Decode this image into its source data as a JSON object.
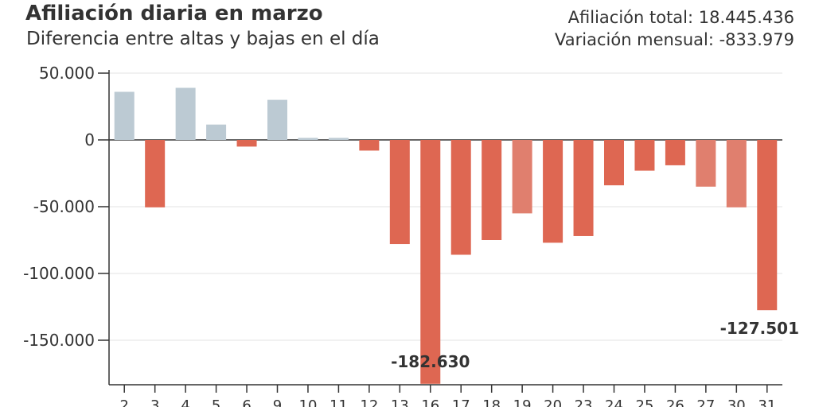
{
  "header": {
    "title": "Afiliación diaria en marzo",
    "subtitle": "Diferencia entre altas y bajas en el día",
    "total_label": "Afiliación total: 18.445.436",
    "monthly_label": "Variación mensual: -833.979"
  },
  "chart_data": {
    "type": "bar",
    "title": "Afiliación diaria en marzo",
    "subtitle": "Diferencia entre altas y bajas en el día",
    "xlabel": "",
    "ylabel": "",
    "categories": [
      "2",
      "3",
      "4",
      "5",
      "6",
      "9",
      "10",
      "11",
      "12",
      "13",
      "16",
      "17",
      "18",
      "19",
      "20",
      "23",
      "24",
      "25",
      "26",
      "27",
      "30",
      "31"
    ],
    "values": [
      36000,
      -50500,
      39000,
      11500,
      -5000,
      30000,
      1500,
      1500,
      -8000,
      -78000,
      -182630,
      -86000,
      -75000,
      -55000,
      -77000,
      -72000,
      -34000,
      -23000,
      -19000,
      -35000,
      -50500,
      -127501
    ],
    "ylim": [
      -182630,
      55000
    ],
    "yticks": [
      50000,
      0,
      -50000,
      -100000,
      -150000
    ],
    "ytick_labels": [
      "50.000",
      "0",
      "-50.000",
      "-100.000",
      "-150.000"
    ],
    "grid": true,
    "colors": {
      "positive": "#bccad3",
      "negative": "#de6752",
      "negative_alt": "#e07f6e"
    },
    "annotations": [
      {
        "category": "16",
        "value": -182630,
        "text": "-182.630"
      },
      {
        "category": "31",
        "value": -127501,
        "text": "-127.501"
      }
    ]
  }
}
